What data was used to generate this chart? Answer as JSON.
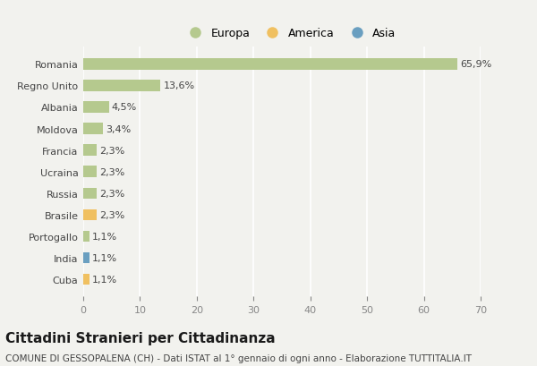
{
  "categories": [
    "Romania",
    "Regno Unito",
    "Albania",
    "Moldova",
    "Francia",
    "Ucraina",
    "Russia",
    "Brasile",
    "Portogallo",
    "India",
    "Cuba"
  ],
  "values": [
    65.9,
    13.6,
    4.5,
    3.4,
    2.3,
    2.3,
    2.3,
    2.3,
    1.1,
    1.1,
    1.1
  ],
  "labels": [
    "65,9%",
    "13,6%",
    "4,5%",
    "3,4%",
    "2,3%",
    "2,3%",
    "2,3%",
    "2,3%",
    "1,1%",
    "1,1%",
    "1,1%"
  ],
  "bar_colors": [
    "#b5c98e",
    "#b5c98e",
    "#b5c98e",
    "#b5c98e",
    "#b5c98e",
    "#b5c98e",
    "#b5c98e",
    "#f0c060",
    "#b5c98e",
    "#6a9fc0",
    "#f0c060"
  ],
  "legend_labels": [
    "Europa",
    "America",
    "Asia"
  ],
  "legend_colors": [
    "#b5c98e",
    "#f0c060",
    "#6a9fc0"
  ],
  "title": "Cittadini Stranieri per Cittadinanza",
  "subtitle": "COMUNE DI GESSOPALENA (CH) - Dati ISTAT al 1° gennaio di ogni anno - Elaborazione TUTTITALIA.IT",
  "xlim": [
    0,
    70
  ],
  "xticks": [
    0,
    10,
    20,
    30,
    40,
    50,
    60,
    70
  ],
  "background_color": "#f2f2ee",
  "grid_color": "#ffffff",
  "title_fontsize": 11,
  "subtitle_fontsize": 7.5,
  "label_fontsize": 8,
  "tick_fontsize": 8,
  "ytick_fontsize": 8
}
